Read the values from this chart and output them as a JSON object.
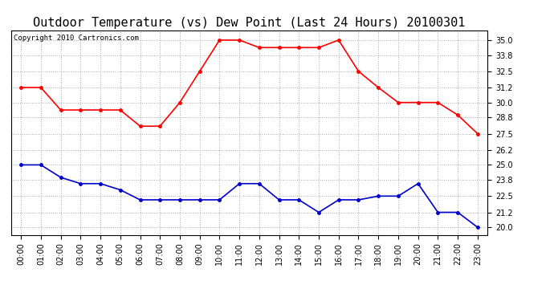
{
  "title": "Outdoor Temperature (vs) Dew Point (Last 24 Hours) 20100301",
  "copyright": "Copyright 2010 Cartronics.com",
  "hours": [
    "00:00",
    "01:00",
    "02:00",
    "03:00",
    "04:00",
    "05:00",
    "06:00",
    "07:00",
    "08:00",
    "09:00",
    "10:00",
    "11:00",
    "12:00",
    "13:00",
    "14:00",
    "15:00",
    "16:00",
    "17:00",
    "18:00",
    "19:00",
    "20:00",
    "21:00",
    "22:00",
    "23:00"
  ],
  "temp": [
    31.2,
    31.2,
    29.4,
    29.4,
    29.4,
    29.4,
    28.1,
    28.1,
    30.0,
    32.5,
    35.0,
    35.0,
    34.4,
    34.4,
    34.4,
    34.4,
    35.0,
    32.5,
    31.2,
    30.0,
    30.0,
    30.0,
    29.0,
    27.5
  ],
  "dew": [
    25.0,
    25.0,
    24.0,
    23.5,
    23.5,
    23.0,
    22.2,
    22.2,
    22.2,
    22.2,
    22.2,
    23.5,
    23.5,
    22.2,
    22.2,
    21.2,
    22.2,
    22.2,
    22.5,
    22.5,
    23.5,
    21.2,
    21.2,
    20.0
  ],
  "temp_color": "#ff0000",
  "dew_color": "#0000cc",
  "background_color": "#ffffff",
  "grid_color": "#aaaaaa",
  "yticks": [
    20.0,
    21.2,
    22.5,
    23.8,
    25.0,
    26.2,
    27.5,
    28.8,
    30.0,
    31.2,
    32.5,
    33.8,
    35.0
  ],
  "ylim": [
    19.4,
    35.8
  ],
  "title_fontsize": 11,
  "tick_fontsize": 7,
  "copyright_fontsize": 6.5
}
